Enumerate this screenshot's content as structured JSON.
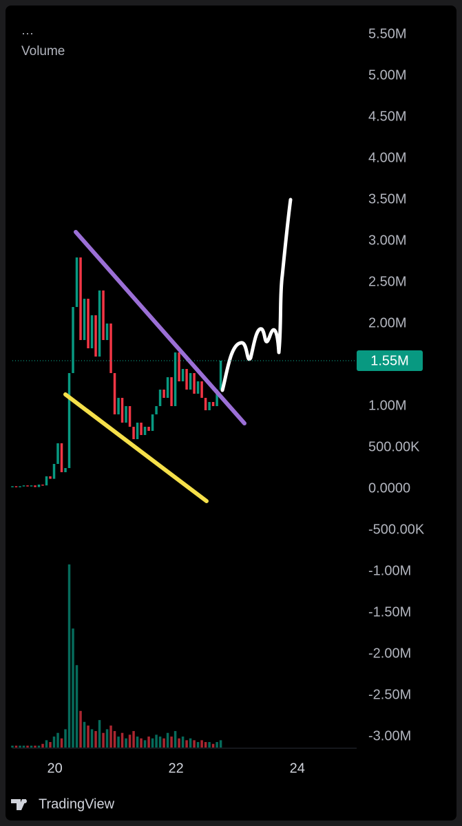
{
  "chart_data": {
    "type": "candlestick",
    "menu": "···",
    "volume_label": "Volume",
    "x": [
      19.3,
      19.3625,
      19.425,
      19.4875,
      19.55,
      19.6125,
      19.675,
      19.7375,
      19.8,
      19.8625,
      19.925,
      19.9875,
      20.05,
      20.1125,
      20.175,
      20.2375,
      20.3,
      20.3625,
      20.425,
      20.4875,
      20.55,
      20.6125,
      20.675,
      20.7375,
      20.8,
      20.8625,
      20.925,
      20.9875,
      21.05,
      21.1125,
      21.175,
      21.2375,
      21.3,
      21.3625,
      21.425,
      21.4875,
      21.55,
      21.6125,
      21.675,
      21.7375,
      21.8,
      21.8625,
      21.925,
      21.9875,
      22.05,
      22.1125,
      22.175,
      22.2375,
      22.3,
      22.3625,
      22.425,
      22.4875,
      22.55,
      22.6125,
      22.675,
      22.7375
    ],
    "series": [
      {
        "name": "Price",
        "up_color": "#089981",
        "down_color": "#f23645",
        "values": [
          30000,
          20000,
          30000,
          40000,
          30000,
          40000,
          20000,
          50000,
          40000,
          150000,
          120000,
          300000,
          550000,
          200000,
          250000,
          1400000,
          2200000,
          2800000,
          1800000,
          2300000,
          1700000,
          2100000,
          1600000,
          2400000,
          1800000,
          2000000,
          1400000,
          900000,
          1100000,
          800000,
          1000000,
          750000,
          600000,
          800000,
          650000,
          750000,
          700000,
          900000,
          1000000,
          1200000,
          1100000,
          1350000,
          1000000,
          1650000,
          1300000,
          1450000,
          1200000,
          1400000,
          1150000,
          1300000,
          1100000,
          950000,
          1050000,
          1000000,
          1200000,
          1550000
        ]
      },
      {
        "name": "Volume",
        "ylim": [
          0,
          100
        ],
        "values": [
          1,
          1,
          1,
          1,
          1,
          1,
          1,
          1,
          2,
          4,
          3,
          6,
          8,
          5,
          10,
          100,
          65,
          45,
          20,
          14,
          12,
          10,
          9,
          15,
          8,
          10,
          12,
          9,
          6,
          8,
          5,
          7,
          9,
          6,
          5,
          4,
          6,
          5,
          7,
          6,
          5,
          8,
          6,
          9,
          5,
          6,
          4,
          5,
          4,
          3,
          4,
          3,
          3,
          2,
          3,
          4
        ]
      }
    ],
    "last_price": {
      "value": 1550000,
      "label": "1.55M",
      "color": "#089981"
    },
    "xlim": [
      19.3,
      24.98
    ],
    "xticks": [
      20,
      22,
      24
    ],
    "ylim": [
      -3050000,
      5650000
    ],
    "yticks": [
      {
        "value": 5500000,
        "label": "5.50M"
      },
      {
        "value": 5000000,
        "label": "5.00M"
      },
      {
        "value": 4500000,
        "label": "4.50M"
      },
      {
        "value": 4000000,
        "label": "4.00M"
      },
      {
        "value": 3500000,
        "label": "3.50M"
      },
      {
        "value": 3000000,
        "label": "3.00M"
      },
      {
        "value": 2500000,
        "label": "2.50M"
      },
      {
        "value": 2000000,
        "label": "2.00M"
      },
      {
        "value": 1000000,
        "label": "1.00M"
      },
      {
        "value": 500000,
        "label": "500.00K"
      },
      {
        "value": 0,
        "label": "0.0000"
      },
      {
        "value": -500000,
        "label": "-500.00K"
      },
      {
        "value": -1000000,
        "label": "-1.00M"
      },
      {
        "value": -1500000,
        "label": "-1.50M"
      },
      {
        "value": -2000000,
        "label": "-2.00M"
      },
      {
        "value": -2500000,
        "label": "-2.50M"
      },
      {
        "value": -3000000,
        "label": "-3.00M"
      }
    ],
    "brand": "TradingView"
  }
}
